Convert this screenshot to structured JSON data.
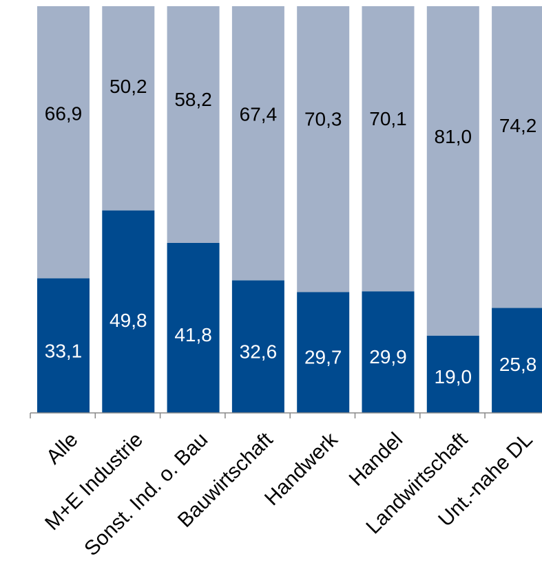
{
  "chart_data": {
    "type": "bar",
    "stacked": true,
    "categories": [
      "Alle",
      "M+E Industrie",
      "Sonst. Ind. o. Bau",
      "Bauwirtschaft",
      "Handwerk",
      "Handel",
      "Landwirtschaft",
      "Unt.-nahe DL"
    ],
    "series": [
      {
        "values": [
          33.1,
          49.8,
          41.8,
          32.6,
          29.7,
          29.9,
          19.0,
          25.8
        ],
        "labels": [
          "33,1",
          "49,8",
          "41,8",
          "32,6",
          "29,7",
          "29,9",
          "19,0",
          "25,8"
        ],
        "color": "#004a8f",
        "label_color": "#ffffff"
      },
      {
        "values": [
          66.9,
          50.2,
          58.2,
          67.4,
          70.3,
          70.1,
          81.0,
          74.2
        ],
        "labels": [
          "66,9",
          "50,2",
          "58,2",
          "67,4",
          "70,3",
          "70,1",
          "81,0",
          "74,2"
        ],
        "color": "#a3b1c8",
        "label_color": "#000000"
      }
    ],
    "ylim": [
      0,
      100
    ],
    "grid": false,
    "xlabel": "",
    "ylabel": "",
    "title": ""
  }
}
